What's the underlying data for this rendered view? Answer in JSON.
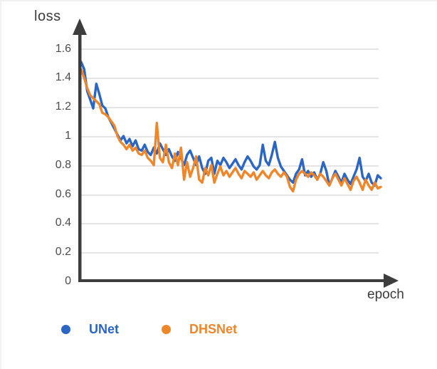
{
  "chart_data": {
    "type": "line",
    "title": "",
    "xlabel": "epoch",
    "ylabel": "loss",
    "ylim": [
      0,
      1.6
    ],
    "yticks": [
      "1.6",
      "1.4",
      "1.2",
      "1",
      "0.8",
      "0.6",
      "0.4",
      "0.2",
      "0"
    ],
    "xticks": [],
    "grid": "horizontal",
    "legend_position": "bottom",
    "axis_color": "#3d3d3d",
    "gridline_color": "#e4e4e4",
    "n_points": 100,
    "series": [
      {
        "name": "UNet",
        "color": "#2b66c4",
        "values": [
          1.51,
          1.46,
          1.31,
          1.25,
          1.19,
          1.36,
          1.29,
          1.21,
          1.19,
          1.13,
          1.09,
          1.05,
          1.01,
          0.97,
          1.0,
          0.95,
          0.98,
          0.93,
          0.97,
          0.91,
          0.9,
          0.94,
          0.89,
          0.87,
          0.92,
          0.88,
          0.95,
          0.91,
          0.87,
          0.91,
          0.86,
          0.83,
          0.89,
          0.85,
          0.8,
          0.87,
          0.9,
          0.85,
          0.8,
          0.86,
          0.78,
          0.74,
          0.83,
          0.85,
          0.74,
          0.83,
          0.8,
          0.85,
          0.82,
          0.78,
          0.81,
          0.84,
          0.8,
          0.77,
          0.82,
          0.86,
          0.83,
          0.79,
          0.77,
          0.8,
          0.94,
          0.83,
          0.8,
          0.87,
          0.96,
          0.85,
          0.79,
          0.76,
          0.73,
          0.7,
          0.68,
          0.74,
          0.77,
          0.84,
          0.73,
          0.76,
          0.72,
          0.75,
          0.7,
          0.74,
          0.82,
          0.76,
          0.66,
          0.71,
          0.76,
          0.72,
          0.68,
          0.74,
          0.7,
          0.67,
          0.72,
          0.77,
          0.85,
          0.72,
          0.69,
          0.74,
          0.68,
          0.66,
          0.73,
          0.71
        ]
      },
      {
        "name": "DHSNet",
        "color": "#f0862a",
        "values": [
          1.46,
          1.4,
          1.33,
          1.28,
          1.26,
          1.24,
          1.22,
          1.16,
          1.15,
          1.13,
          1.1,
          1.07,
          1.0,
          0.96,
          0.94,
          0.91,
          0.94,
          0.9,
          0.92,
          0.88,
          0.87,
          0.9,
          0.85,
          0.83,
          0.8,
          1.09,
          0.85,
          0.82,
          0.94,
          0.82,
          0.78,
          0.88,
          0.8,
          0.92,
          0.7,
          0.82,
          0.72,
          0.78,
          0.86,
          0.7,
          0.68,
          0.78,
          0.73,
          0.8,
          0.68,
          0.74,
          0.79,
          0.73,
          0.76,
          0.72,
          0.75,
          0.78,
          0.74,
          0.71,
          0.76,
          0.74,
          0.72,
          0.75,
          0.7,
          0.73,
          0.76,
          0.73,
          0.71,
          0.75,
          0.77,
          0.74,
          0.72,
          0.75,
          0.72,
          0.65,
          0.62,
          0.7,
          0.74,
          0.76,
          0.74,
          0.72,
          0.75,
          0.73,
          0.7,
          0.74,
          0.72,
          0.69,
          0.66,
          0.71,
          0.74,
          0.7,
          0.66,
          0.71,
          0.67,
          0.63,
          0.69,
          0.72,
          0.68,
          0.63,
          0.7,
          0.66,
          0.63,
          0.68,
          0.64,
          0.65
        ]
      }
    ]
  }
}
